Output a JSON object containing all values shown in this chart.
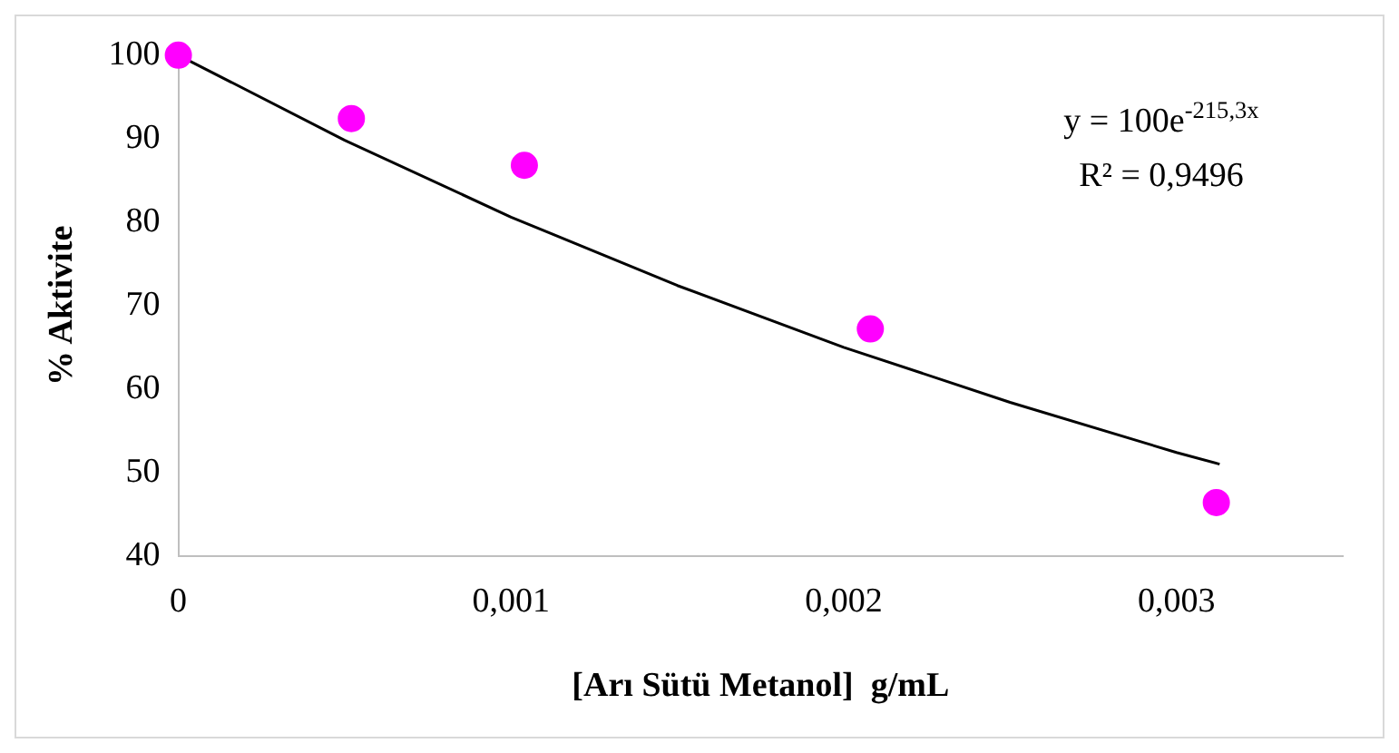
{
  "chart_data": {
    "type": "scatter",
    "xlabel": "[Arı Sütü Metanol]  g/mL",
    "ylabel": "% Aktivite",
    "x": [
      0,
      0.00052,
      0.00104,
      0.00208,
      0.00312
    ],
    "series": [
      {
        "type": "scatter",
        "color": "#ff00ff",
        "values": [
          100,
          92.4,
          86.8,
          67.2,
          46.4
        ],
        "marker": "circle"
      },
      {
        "type": "line",
        "color": "#000000",
        "marker": "none",
        "x": [
          0,
          0.0005,
          0.001,
          0.0015,
          0.002,
          0.0025,
          0.003,
          0.00313
        ],
        "values": [
          100,
          89.8,
          80.6,
          72.4,
          65.0,
          58.4,
          52.4,
          51.0
        ]
      }
    ],
    "xlim": [
      0,
      0.0035
    ],
    "xticks": [
      0,
      {
        "value": 0.001,
        "label": "0,001"
      },
      {
        "value": 0.002,
        "label": "0,002"
      },
      {
        "value": 0.003,
        "label": "0,003"
      }
    ],
    "ylim": [
      40,
      100
    ],
    "yticks": [
      40,
      50,
      60,
      70,
      80,
      90,
      100
    ],
    "grid": false,
    "legend": false,
    "annotations": [
      "y = 100e$^{-215,3x}$",
      "R² = 0,9496"
    ]
  }
}
